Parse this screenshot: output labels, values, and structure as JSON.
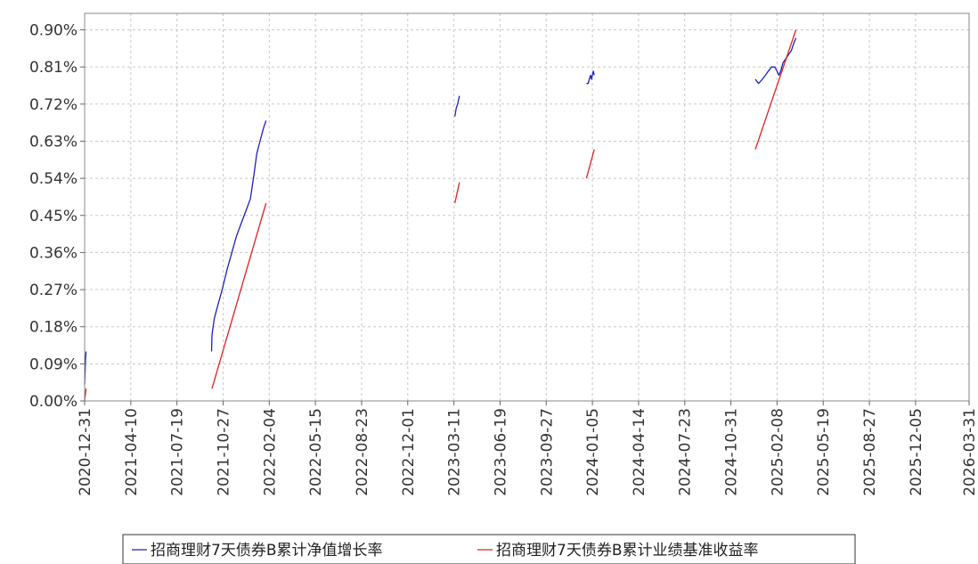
{
  "chart_data": {
    "type": "line",
    "title": "",
    "xlabel": "",
    "ylabel": "",
    "x_axis": {
      "type": "date",
      "range": [
        "2020-12-31",
        "2026-03-31"
      ],
      "ticks": [
        "2020-12-31",
        "2021-04-10",
        "2021-07-19",
        "2021-10-27",
        "2022-02-04",
        "2022-05-15",
        "2022-08-23",
        "2022-12-01",
        "2023-03-11",
        "2023-06-19",
        "2023-09-27",
        "2024-01-05",
        "2024-04-14",
        "2024-07-23",
        "2024-10-31",
        "2025-02-08",
        "2025-05-19",
        "2025-08-27",
        "2025-12-05",
        "2026-03-31"
      ]
    },
    "y_axis": {
      "range": [
        0,
        0.94
      ],
      "ticks": [
        0,
        0.09,
        0.18,
        0.27,
        0.36,
        0.45,
        0.54,
        0.63,
        0.72,
        0.81,
        0.9
      ],
      "tick_labels": [
        "0.00%",
        "0.09%",
        "0.18%",
        "0.27%",
        "0.36%",
        "0.45%",
        "0.54%",
        "0.63%",
        "0.72%",
        "0.81%",
        "0.90%"
      ]
    },
    "grid": true,
    "legend_position": "bottom",
    "series": [
      {
        "name": "招商理财7天债券B累计净值增长率",
        "color": "#1f1fbf",
        "segments": [
          [
            [
              "2020-12-31",
              0.04
            ],
            [
              "2021-01-01",
              0.07
            ],
            [
              "2021-01-02",
              0.1
            ],
            [
              "2021-01-03",
              0.12
            ]
          ],
          [
            [
              "2021-10-02",
              0.12
            ],
            [
              "2021-10-03",
              0.16
            ],
            [
              "2021-10-08",
              0.2
            ],
            [
              "2021-10-15",
              0.23
            ],
            [
              "2021-10-25",
              0.27
            ],
            [
              "2021-11-05",
              0.32
            ],
            [
              "2021-11-15",
              0.36
            ],
            [
              "2021-11-25",
              0.4
            ],
            [
              "2021-12-05",
              0.43
            ],
            [
              "2021-12-15",
              0.46
            ],
            [
              "2021-12-25",
              0.49
            ],
            [
              "2022-01-02",
              0.55
            ],
            [
              "2022-01-08",
              0.6
            ],
            [
              "2022-01-15",
              0.63
            ],
            [
              "2022-01-22",
              0.66
            ],
            [
              "2022-01-28",
              0.68
            ]
          ],
          [
            [
              "2023-03-13",
              0.69
            ],
            [
              "2023-03-16",
              0.71
            ],
            [
              "2023-03-19",
              0.72
            ],
            [
              "2023-03-23",
              0.74
            ]
          ],
          [
            [
              "2023-12-23",
              0.77
            ],
            [
              "2023-12-27",
              0.77
            ],
            [
              "2023-12-29",
              0.78
            ],
            [
              "2024-01-01",
              0.79
            ],
            [
              "2024-01-03",
              0.78
            ],
            [
              "2024-01-05",
              0.79
            ],
            [
              "2024-01-07",
              0.8
            ],
            [
              "2024-01-09",
              0.79
            ]
          ],
          [
            [
              "2024-12-23",
              0.78
            ],
            [
              "2024-12-30",
              0.77
            ],
            [
              "2025-01-07",
              0.78
            ],
            [
              "2025-01-14",
              0.79
            ],
            [
              "2025-01-20",
              0.8
            ],
            [
              "2025-01-27",
              0.81
            ],
            [
              "2025-02-03",
              0.81
            ],
            [
              "2025-02-08",
              0.8
            ],
            [
              "2025-02-12",
              0.79
            ],
            [
              "2025-02-16",
              0.8
            ],
            [
              "2025-02-21",
              0.82
            ],
            [
              "2025-02-27",
              0.83
            ],
            [
              "2025-03-05",
              0.84
            ],
            [
              "2025-03-11",
              0.85
            ],
            [
              "2025-03-17",
              0.87
            ],
            [
              "2025-03-21",
              0.88
            ]
          ]
        ]
      },
      {
        "name": "招商理财7天债券B累计业绩基准收益率",
        "color": "#e02020",
        "segments": [
          [
            [
              "2020-12-31",
              0.0
            ],
            [
              "2021-01-03",
              0.03
            ]
          ],
          [
            [
              "2021-10-03",
              0.03
            ],
            [
              "2022-01-28",
              0.48
            ]
          ],
          [
            [
              "2023-03-13",
              0.48
            ],
            [
              "2023-03-23",
              0.53
            ]
          ],
          [
            [
              "2023-12-23",
              0.54
            ],
            [
              "2024-01-09",
              0.61
            ]
          ],
          [
            [
              "2024-12-23",
              0.61
            ],
            [
              "2025-03-21",
              0.9
            ]
          ]
        ]
      }
    ]
  }
}
